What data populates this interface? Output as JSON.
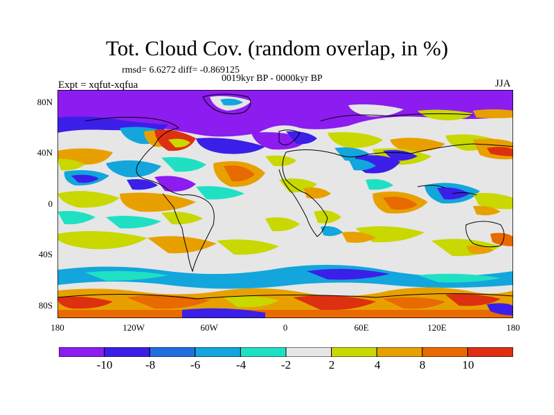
{
  "title": "Tot. Cloud Cov. (random overlap, in %)",
  "stats": "rmsd= 6.6272 diff= -0.869125",
  "subtitle": "0019kyr BP - 0000kyr BP",
  "experiment": "Expt = xqfut-xqfua",
  "season": "JJA",
  "lat_labels": [
    "80N",
    "40N",
    "0",
    "40S",
    "80S"
  ],
  "lon_labels": [
    "180",
    "120W",
    "60W",
    "0",
    "60E",
    "120E",
    "180"
  ],
  "colorbar": {
    "colors": [
      "#8c1cf0",
      "#3b1fe8",
      "#1f6fe0",
      "#12a6dc",
      "#20e0c4",
      "#e6e6e6",
      "#c8d800",
      "#e8a000",
      "#e86a00",
      "#dd3010"
    ],
    "labels": [
      "-10",
      "-8",
      "-6",
      "-4",
      "-2",
      "2",
      "4",
      "8",
      "10"
    ]
  },
  "map": {
    "background_color": "#e6e6e6",
    "coastline_color": "#000000"
  }
}
